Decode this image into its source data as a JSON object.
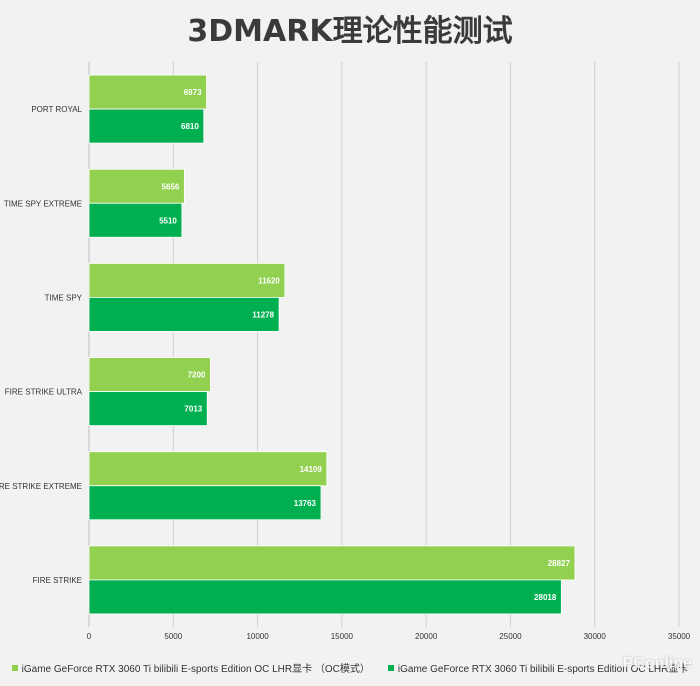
{
  "chart_data": {
    "type": "bar",
    "orientation": "horizontal",
    "title": "3DMARK理论性能测试",
    "categories": [
      "PORT ROYAL",
      "TIME SPY EXTREME",
      "TIME SPY",
      "FIRE STRIKE ULTRA",
      "FIRE STRIKE EXTREME",
      "FIRE STRIKE"
    ],
    "series": [
      {
        "name": "iGame GeForce RTX 3060  Ti bilibili E-sports Edition OC LHR显卡  （OC模式）",
        "color": "#92d050",
        "values": [
          6973,
          5656,
          11620,
          7200,
          14109,
          28827
        ]
      },
      {
        "name": "iGame GeForce RTX 3060  Ti bilibili E-sports Edition OC LHR显卡",
        "color": "#00b050",
        "values": [
          6810,
          5510,
          11278,
          7013,
          13763,
          28018
        ]
      }
    ],
    "xlim": [
      0,
      35000
    ],
    "xticks": [
      "0",
      "5000",
      "10000",
      "15000",
      "20000",
      "25000",
      "30000",
      "35000"
    ],
    "grid": true,
    "legend": "bottom"
  },
  "watermark": "PConline"
}
